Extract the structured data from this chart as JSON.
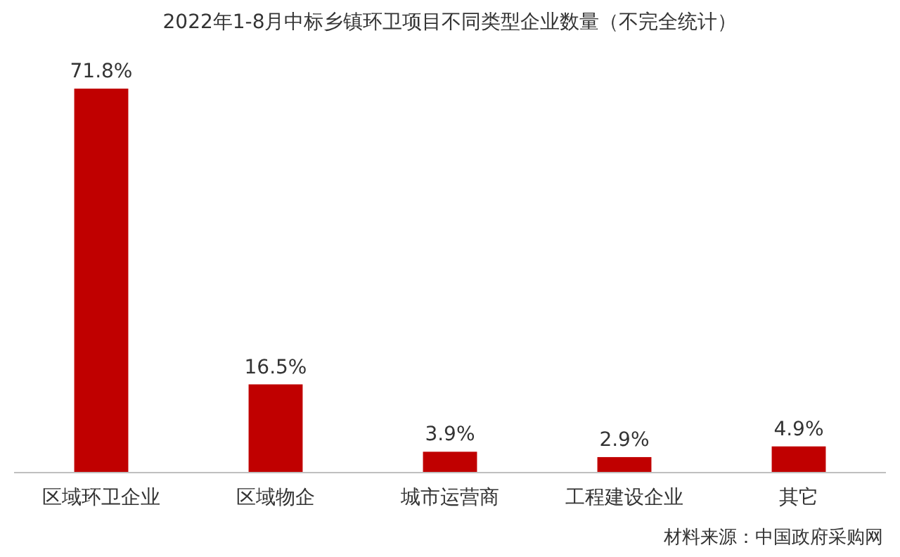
{
  "chart_data": {
    "type": "bar",
    "title": "2022年1-8月中标乡镇环卫项目不同类型企业数量（不完全统计）",
    "categories": [
      "区域环卫企业",
      "区域物企",
      "城市运营商",
      "工程建设企业",
      "其它"
    ],
    "values": [
      71.8,
      16.5,
      3.9,
      2.9,
      4.9
    ],
    "value_labels": [
      "71.8%",
      "16.5%",
      "3.9%",
      "2.9%",
      "4.9%"
    ],
    "color": "#c00000",
    "annotations": [
      "材料来源：中国政府采购网"
    ]
  }
}
